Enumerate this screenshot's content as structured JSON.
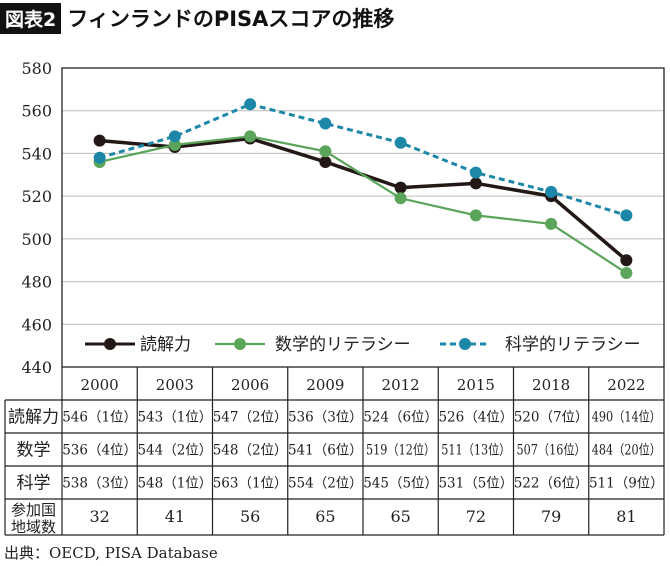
{
  "title": {
    "badge": "図表2",
    "text": "フィンランドのPISAスコアの推移"
  },
  "source": "出典：OECD, PISA Database",
  "chart_data": {
    "type": "line",
    "categories": [
      "2000",
      "2003",
      "2006",
      "2009",
      "2012",
      "2015",
      "2018",
      "2022"
    ],
    "ylim": [
      440,
      580
    ],
    "yticks": [
      440,
      460,
      480,
      500,
      520,
      540,
      560,
      580
    ],
    "grid": true,
    "legend": "bottom-inside",
    "series": [
      {
        "name": "読解力",
        "values": [
          546,
          543,
          547,
          536,
          524,
          526,
          520,
          490
        ],
        "color": "#231815",
        "style": "solid"
      },
      {
        "name": "数学的リテラシー",
        "values": [
          536,
          544,
          548,
          541,
          519,
          511,
          507,
          484
        ],
        "color": "#5aa55a",
        "style": "solid"
      },
      {
        "name": "科学的リテラシー",
        "values": [
          538,
          548,
          563,
          554,
          545,
          531,
          522,
          511
        ],
        "color": "#1d87a8",
        "style": "dashed"
      }
    ]
  },
  "table": {
    "rows": [
      {
        "label": "読解力",
        "cells": [
          "546（1位）",
          "543（1位）",
          "547（2位）",
          "536（3位）",
          "524（6位）",
          "526（4位）",
          "520（7位）",
          "490（14位）"
        ]
      },
      {
        "label": "数学",
        "cells": [
          "536（4位）",
          "544（2位）",
          "548（2位）",
          "541（6位）",
          "519（12位）",
          "511（13位）",
          "507（16位）",
          "484（20位）"
        ]
      },
      {
        "label": "科学",
        "cells": [
          "538（3位）",
          "548（1位）",
          "563（1位）",
          "554（2位）",
          "545（5位）",
          "531（5位）",
          "522（6位）",
          "511（9位）"
        ]
      },
      {
        "label": "参加国地域数",
        "label_lines": [
          "参加国",
          "地域数"
        ],
        "cells": [
          "32",
          "41",
          "56",
          "65",
          "65",
          "72",
          "79",
          "81"
        ]
      }
    ]
  }
}
